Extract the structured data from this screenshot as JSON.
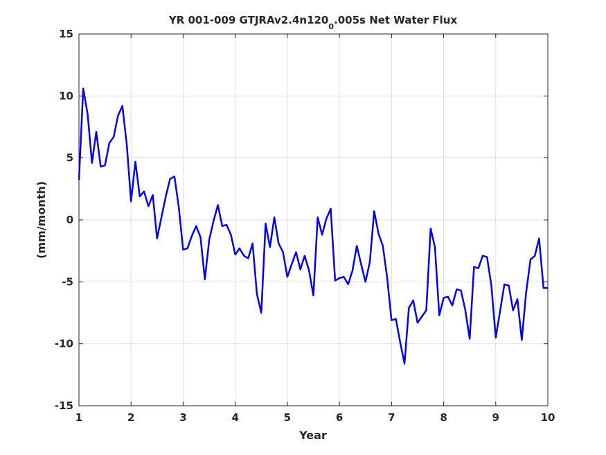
{
  "chart_data": {
    "type": "line",
    "title_prefix": "YR 001-009 GTJRAv2.4n120",
    "title_subscript": "0",
    "title_suffix": ".005s Net Water Flux",
    "xlabel": "Year",
    "ylabel": "(mm/month)",
    "xlim": [
      1,
      10
    ],
    "ylim": [
      -15,
      15
    ],
    "xticks": [
      1,
      2,
      3,
      4,
      5,
      6,
      7,
      8,
      9,
      10
    ],
    "yticks": [
      -15,
      -10,
      -5,
      0,
      5,
      10,
      15
    ],
    "grid": true,
    "line_color": "#0000ee",
    "series": [
      {
        "x": [
          1.0,
          1.083,
          1.167,
          1.25,
          1.333,
          1.417,
          1.5,
          1.583,
          1.667,
          1.75,
          1.833,
          1.917,
          2.0,
          2.083,
          2.167,
          2.25,
          2.333,
          2.417,
          2.5,
          2.583,
          2.667,
          2.75,
          2.833,
          2.917,
          3.0,
          3.083,
          3.167,
          3.25,
          3.333,
          3.417,
          3.5,
          3.583,
          3.667,
          3.75,
          3.833,
          3.917,
          4.0,
          4.083,
          4.167,
          4.25,
          4.333,
          4.417,
          4.5,
          4.583,
          4.667,
          4.75,
          4.833,
          4.917,
          5.0,
          5.083,
          5.167,
          5.25,
          5.333,
          5.417,
          5.5,
          5.583,
          5.667,
          5.75,
          5.833,
          5.917,
          6.0,
          6.083,
          6.167,
          6.25,
          6.333,
          6.417,
          6.5,
          6.583,
          6.667,
          6.75,
          6.833,
          6.917,
          7.0,
          7.083,
          7.167,
          7.25,
          7.333,
          7.417,
          7.5,
          7.583,
          7.667,
          7.75,
          7.833,
          7.917,
          8.0,
          8.083,
          8.167,
          8.25,
          8.333,
          8.417,
          8.5,
          8.583,
          8.667,
          8.75,
          8.833,
          8.917,
          9.0,
          9.083,
          9.167,
          9.25,
          9.333,
          9.417,
          9.5,
          9.583,
          9.667,
          9.75,
          9.833,
          9.917,
          10.0
        ],
        "y": [
          3.2,
          10.6,
          8.5,
          4.6,
          7.1,
          4.3,
          4.4,
          6.2,
          6.7,
          8.4,
          9.2,
          6.1,
          1.5,
          4.7,
          1.9,
          2.3,
          1.1,
          2.0,
          -1.5,
          0.2,
          1.9,
          3.3,
          3.5,
          1.0,
          -2.4,
          -2.3,
          -1.3,
          -0.5,
          -1.4,
          -4.8,
          -1.6,
          -0.1,
          1.2,
          -0.5,
          -0.4,
          -1.2,
          -2.8,
          -2.3,
          -2.9,
          -3.1,
          -1.9,
          -6.0,
          -7.5,
          -0.3,
          -2.2,
          0.2,
          -1.9,
          -2.6,
          -4.6,
          -3.6,
          -2.6,
          -4.0,
          -2.9,
          -4.1,
          -6.1,
          0.2,
          -1.2,
          0.1,
          0.9,
          -4.9,
          -4.7,
          -4.6,
          -5.2,
          -4.1,
          -2.1,
          -3.6,
          -5.0,
          -3.4,
          0.7,
          -1.1,
          -2.1,
          -4.7,
          -8.1,
          -8.0,
          -9.9,
          -11.6,
          -7.1,
          -6.5,
          -8.3,
          -7.8,
          -7.3,
          -0.7,
          -2.2,
          -7.7,
          -6.3,
          -6.2,
          -6.9,
          -5.6,
          -5.7,
          -7.3,
          -9.6,
          -3.8,
          -3.9,
          -2.9,
          -3.0,
          -5.3,
          -9.5,
          -7.4,
          -5.2,
          -5.3,
          -7.3,
          -6.4,
          -9.7,
          -5.9,
          -3.2,
          -2.9,
          -1.5,
          -5.5,
          -5.5
        ]
      }
    ]
  }
}
